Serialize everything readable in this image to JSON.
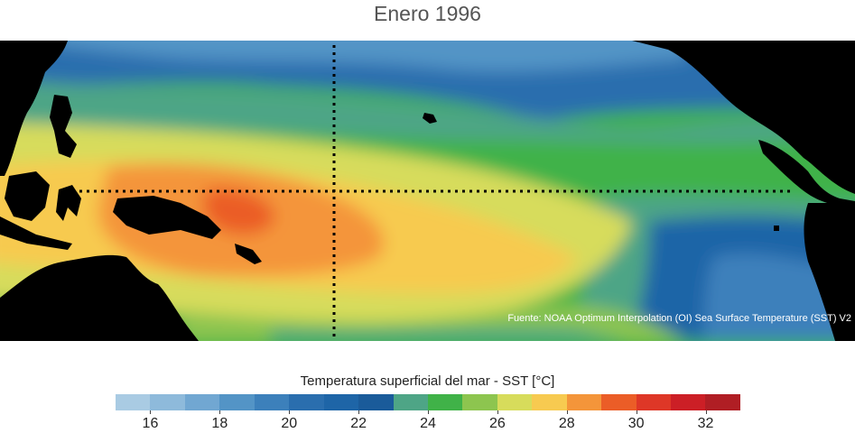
{
  "title": "Enero 1996",
  "source_note": "Fuente: NOAA Optimum Interpolation (OI) Sea Surface Temperature (SST) V2",
  "legend": {
    "title": "Temperatura superficial del mar - SST  [°C]",
    "min": 15,
    "max": 33,
    "ticks": [
      "16",
      "18",
      "20",
      "22",
      "24",
      "26",
      "28",
      "30",
      "32"
    ],
    "colors": [
      "#a9cbe3",
      "#8ebadb",
      "#71a7d2",
      "#5394c6",
      "#3c80bb",
      "#2a6eae",
      "#1e65a7",
      "#1a5b9a",
      "#4ea586",
      "#40b248",
      "#8dc54f",
      "#d7dc5b",
      "#f7ca50",
      "#f4953a",
      "#eb5d27",
      "#de3727",
      "#cc1f26",
      "#b01e24"
    ]
  },
  "map": {
    "land_color": "#000000",
    "dotted_line_color": "#000000",
    "region": "Pacífico tropical"
  },
  "chart_data": {
    "type": "heatmap",
    "title": "Enero 1996",
    "variable": "Temperatura superficial del mar - SST",
    "unit": "°C",
    "range": [
      15,
      33
    ]
  }
}
